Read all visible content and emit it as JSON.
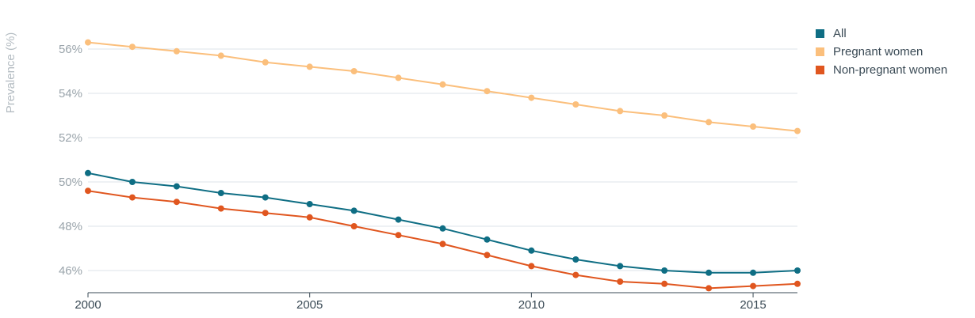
{
  "chart_data": {
    "type": "line",
    "ylabel": "Prevalence (%)",
    "xlabel": "",
    "x": [
      2000,
      2001,
      2002,
      2003,
      2004,
      2005,
      2006,
      2007,
      2008,
      2009,
      2010,
      2011,
      2012,
      2013,
      2014,
      2015,
      2016
    ],
    "xlim": [
      2000,
      2016
    ],
    "ylim": [
      45,
      57
    ],
    "x_ticks": [
      2000,
      2005,
      2010,
      2015
    ],
    "y_ticks": [
      46,
      48,
      50,
      52,
      54,
      56
    ],
    "y_tick_suffix": "%",
    "grid": true,
    "legend_position": "top-right",
    "series": [
      {
        "name": "All",
        "color": "#0f6e84",
        "values": [
          50.4,
          50.0,
          49.8,
          49.5,
          49.3,
          49.0,
          48.7,
          48.3,
          47.9,
          47.4,
          46.9,
          46.5,
          46.2,
          46.0,
          45.9,
          45.9,
          46.0
        ]
      },
      {
        "name": "Pregnant women",
        "color": "#fbbf7c",
        "values": [
          56.3,
          56.1,
          55.9,
          55.7,
          55.4,
          55.2,
          55.0,
          54.7,
          54.4,
          54.1,
          53.8,
          53.5,
          53.2,
          53.0,
          52.7,
          52.5,
          52.3
        ]
      },
      {
        "name": "Non-pregnant women",
        "color": "#e0561f",
        "values": [
          49.6,
          49.3,
          49.1,
          48.8,
          48.6,
          48.4,
          48.0,
          47.6,
          47.2,
          46.7,
          46.2,
          45.8,
          45.5,
          45.4,
          45.2,
          45.3,
          45.4
        ]
      }
    ]
  }
}
